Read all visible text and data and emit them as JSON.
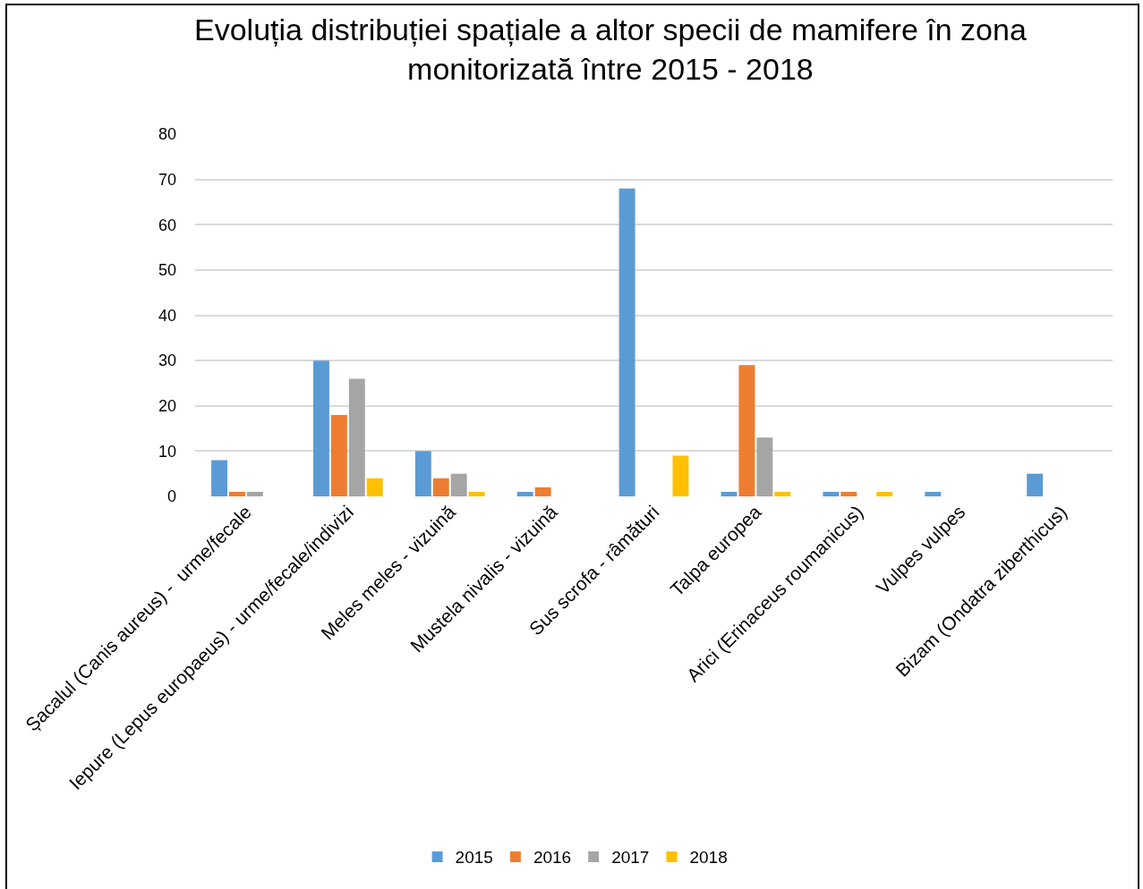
{
  "chart_data": {
    "type": "bar",
    "title": "Evoluția distribuției spațiale a altor specii de mamifere în zona\nmonitorizată între 2015 - 2018",
    "categories": [
      "Șacalul (Canis aureus) -  urme/fecale",
      "Iepure (Lepus europaeus) - urme/fecale/indivizi",
      "Meles meles - vizuină",
      "Mustela nivalis - vizuină",
      "Sus scrofa - râmături",
      "Talpa europea",
      "Arici (Erinaceus roumanicus)",
      "Vulpes vulpes",
      "Bizam (Ondatra ziberthicus)"
    ],
    "series": [
      {
        "name": "2015",
        "color": "#5b9bd5",
        "values": [
          8,
          30,
          10,
          1,
          68,
          1,
          1,
          1,
          5
        ]
      },
      {
        "name": "2016",
        "color": "#ed7d31",
        "values": [
          1,
          18,
          4,
          2,
          0,
          29,
          1,
          0,
          0
        ]
      },
      {
        "name": "2017",
        "color": "#a5a5a5",
        "values": [
          1,
          26,
          5,
          0,
          0,
          13,
          0,
          0,
          0
        ]
      },
      {
        "name": "2018",
        "color": "#ffc000",
        "values": [
          0,
          4,
          1,
          0,
          9,
          1,
          1,
          0,
          0
        ]
      }
    ],
    "ylim": [
      0,
      80
    ],
    "yticks": [
      0,
      10,
      20,
      30,
      40,
      50,
      60,
      70,
      80
    ],
    "grid": "y",
    "legend": "bottom"
  }
}
